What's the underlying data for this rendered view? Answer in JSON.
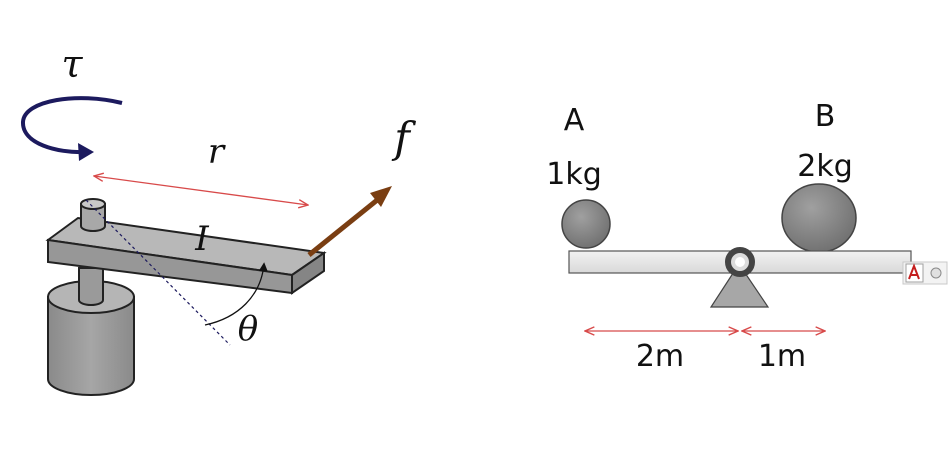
{
  "torque_diagram": {
    "tau_symbol": "τ",
    "r_symbol": "r",
    "f_symbol": "f",
    "inertia_symbol": "I",
    "theta_symbol": "θ"
  },
  "seesaw": {
    "mass_a_name": "A",
    "mass_a_value": "1kg",
    "mass_b_name": "B",
    "mass_b_value": "2kg",
    "dist_left": "2m",
    "dist_right": "1m"
  },
  "colors": {
    "curl_arrow": "#1c1a5e",
    "force_arrow": "#7a3e12",
    "dimension_arrow": "#d84a4a",
    "metal": "#9a9a9a"
  },
  "icons": [
    "acrobat-icon",
    "circle-button-icon"
  ]
}
